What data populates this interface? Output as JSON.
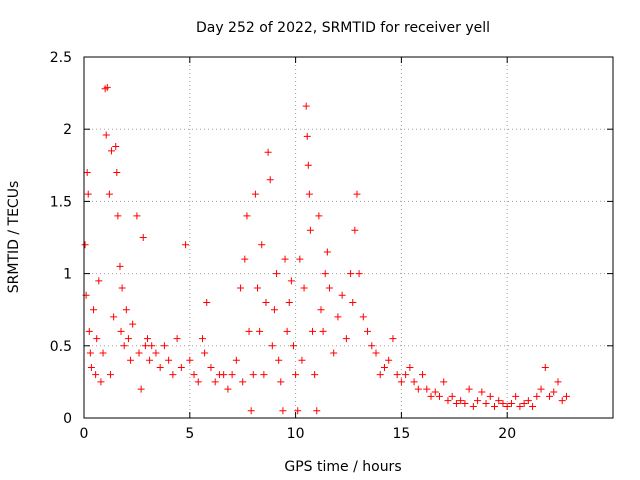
{
  "chart_data": {
    "type": "scatter",
    "title": "Day 252 of 2022, SRMTID for receiver yell",
    "xlabel": "GPS time / hours",
    "ylabel": "SRMTID / TECUs",
    "xlim": [
      0,
      25
    ],
    "ylim": [
      0,
      2.5
    ],
    "xticks": [
      0,
      5,
      10,
      15,
      20
    ],
    "yticks": [
      0,
      0.5,
      1,
      1.5,
      2,
      2.5
    ],
    "xtick_labels": [
      "0",
      "5",
      "10",
      "15",
      "20"
    ],
    "ytick_labels": [
      "0",
      "0.5",
      "1",
      "1.5",
      "2",
      "2.5"
    ],
    "grid": true,
    "marker": "plus",
    "color": "#ff0000",
    "series": [
      {
        "name": "SRMTID",
        "x": [
          0.05,
          0.1,
          0.15,
          0.2,
          0.25,
          0.3,
          0.35,
          0.45,
          0.55,
          0.6,
          0.7,
          0.8,
          0.9,
          1.0,
          1.05,
          1.1,
          1.2,
          1.25,
          1.3,
          1.4,
          1.5,
          1.55,
          1.6,
          1.7,
          1.75,
          1.8,
          1.9,
          2.0,
          2.1,
          2.2,
          2.3,
          2.5,
          2.6,
          2.7,
          2.8,
          2.9,
          3.0,
          3.1,
          3.2,
          3.4,
          3.6,
          3.8,
          4.0,
          4.2,
          4.4,
          4.6,
          4.8,
          5.0,
          5.2,
          5.4,
          5.6,
          5.7,
          5.8,
          6.0,
          6.2,
          6.4,
          6.6,
          6.8,
          7.0,
          7.2,
          7.4,
          7.5,
          7.6,
          7.7,
          7.8,
          7.9,
          8.0,
          8.1,
          8.2,
          8.3,
          8.4,
          8.5,
          8.6,
          8.7,
          8.8,
          8.9,
          9.0,
          9.1,
          9.2,
          9.3,
          9.4,
          9.5,
          9.6,
          9.7,
          9.8,
          9.9,
          10.0,
          10.1,
          10.2,
          10.3,
          10.4,
          10.5,
          10.55,
          10.6,
          10.65,
          10.7,
          10.8,
          10.9,
          11.0,
          11.1,
          11.2,
          11.3,
          11.4,
          11.5,
          11.6,
          11.8,
          12.0,
          12.2,
          12.4,
          12.6,
          12.7,
          12.8,
          12.9,
          13.0,
          13.2,
          13.4,
          13.6,
          13.8,
          14.0,
          14.2,
          14.4,
          14.6,
          14.8,
          15.0,
          15.2,
          15.4,
          15.6,
          15.8,
          16.0,
          16.2,
          16.4,
          16.6,
          16.8,
          17.0,
          17.2,
          17.4,
          17.6,
          17.8,
          18.0,
          18.2,
          18.4,
          18.6,
          18.8,
          19.0,
          19.2,
          19.4,
          19.6,
          19.8,
          20.0,
          20.2,
          20.4,
          20.6,
          20.8,
          21.0,
          21.2,
          21.4,
          21.6,
          21.8,
          22.0,
          22.2,
          22.4,
          22.6,
          22.8
        ],
        "y": [
          1.2,
          0.85,
          1.7,
          1.55,
          0.6,
          0.45,
          0.35,
          0.75,
          0.3,
          0.55,
          0.95,
          0.25,
          0.45,
          2.28,
          1.96,
          2.29,
          1.55,
          0.3,
          1.85,
          0.7,
          1.88,
          1.7,
          1.4,
          1.05,
          0.6,
          0.9,
          0.5,
          0.75,
          0.55,
          0.4,
          0.65,
          1.4,
          0.45,
          0.2,
          1.25,
          0.5,
          0.55,
          0.4,
          0.5,
          0.45,
          0.35,
          0.5,
          0.4,
          0.3,
          0.55,
          0.35,
          1.2,
          0.4,
          0.3,
          0.25,
          0.55,
          0.45,
          0.8,
          0.35,
          0.25,
          0.3,
          0.3,
          0.2,
          0.3,
          0.4,
          0.9,
          0.25,
          1.1,
          1.4,
          0.6,
          0.05,
          0.3,
          1.55,
          0.9,
          0.6,
          1.2,
          0.3,
          0.8,
          1.84,
          1.65,
          0.5,
          0.75,
          1.0,
          0.4,
          0.25,
          0.05,
          1.1,
          0.6,
          0.8,
          0.95,
          0.5,
          0.3,
          0.05,
          1.1,
          0.4,
          0.9,
          2.16,
          1.95,
          1.75,
          1.55,
          1.3,
          0.6,
          0.3,
          0.05,
          1.4,
          0.75,
          0.6,
          1.0,
          1.15,
          0.9,
          0.45,
          0.7,
          0.85,
          0.55,
          1.0,
          0.8,
          1.3,
          1.55,
          1.0,
          0.7,
          0.6,
          0.5,
          0.45,
          0.3,
          0.35,
          0.4,
          0.55,
          0.3,
          0.25,
          0.3,
          0.35,
          0.25,
          0.2,
          0.3,
          0.2,
          0.15,
          0.18,
          0.15,
          0.25,
          0.12,
          0.15,
          0.1,
          0.12,
          0.1,
          0.2,
          0.08,
          0.12,
          0.18,
          0.1,
          0.15,
          0.08,
          0.12,
          0.1,
          0.08,
          0.1,
          0.15,
          0.08,
          0.1,
          0.12,
          0.08,
          0.15,
          0.2,
          0.35,
          0.15,
          0.18,
          0.25,
          0.12,
          0.15
        ]
      }
    ]
  }
}
